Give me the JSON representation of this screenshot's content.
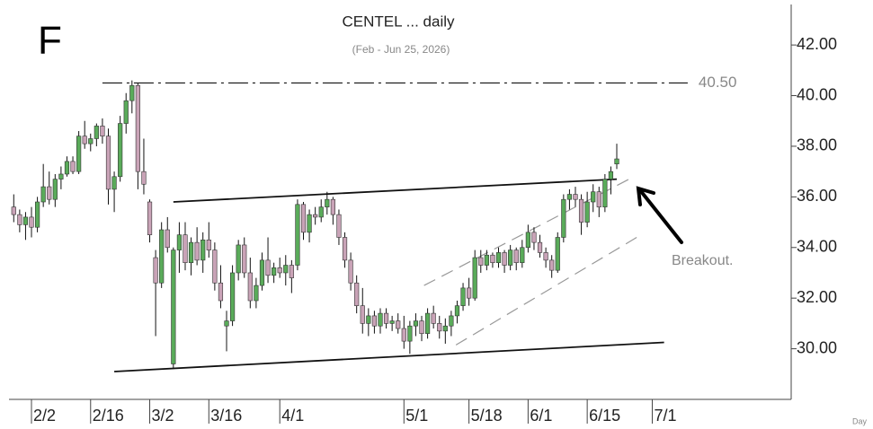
{
  "chart_data": {
    "type": "candlestick",
    "title": "CENTEL ... daily",
    "subtitle": "(Feb - Jun 25, 2026)",
    "symbol": "F",
    "x_axis_label": "Day",
    "annotation": "Breakout.",
    "up_color": "#5aab5a",
    "down_color": "#c9a3b7",
    "ylim": [
      28,
      43.6
    ],
    "yticks": [
      {
        "value": 30,
        "label": "30.00"
      },
      {
        "value": 32,
        "label": "32.00"
      },
      {
        "value": 34,
        "label": "34.00"
      },
      {
        "value": 36,
        "label": "36.00"
      },
      {
        "value": 38,
        "label": "38.00"
      },
      {
        "value": 40,
        "label": "40.00"
      },
      {
        "value": 42,
        "label": "42.00"
      }
    ],
    "categories": [
      null,
      null,
      null,
      "2/2",
      null,
      null,
      null,
      null,
      null,
      null,
      null,
      null,
      null,
      "2/16",
      null,
      null,
      null,
      null,
      null,
      null,
      null,
      null,
      null,
      "3/2",
      null,
      null,
      null,
      null,
      null,
      null,
      null,
      null,
      null,
      "3/16",
      null,
      null,
      null,
      null,
      null,
      null,
      null,
      null,
      null,
      null,
      null,
      "4/1",
      null,
      null,
      null,
      null,
      null,
      null,
      null,
      null,
      null,
      null,
      null,
      null,
      null,
      null,
      null,
      null,
      null,
      null,
      null,
      null,
      "5/1",
      null,
      null,
      null,
      null,
      null,
      null,
      null,
      null,
      null,
      null,
      "5/18",
      null,
      null,
      null,
      null,
      null,
      null,
      null,
      null,
      null,
      "6/1",
      null,
      null,
      null,
      null,
      null,
      null,
      null,
      null,
      null,
      "6/15",
      null,
      null,
      null,
      null,
      null,
      null,
      null,
      null,
      null,
      null,
      "7/1",
      null,
      null,
      null,
      null,
      null,
      null,
      null,
      null,
      null,
      null,
      null,
      null,
      null,
      null,
      null,
      null,
      null,
      null,
      null,
      null,
      null,
      null,
      null
    ],
    "open": [
      35.6,
      35.3,
      34.9,
      35.2,
      34.8,
      35.8,
      36.4,
      35.9,
      36.7,
      36.9,
      37.4,
      37.0,
      38.4,
      38.1,
      38.3,
      38.8,
      38.4,
      36.3,
      36.8,
      38.9,
      39.8,
      40.4,
      37.0,
      35.8,
      33.6,
      32.6,
      34.7,
      29.4,
      33.9,
      34.5,
      33.4,
      34.2,
      33.5,
      34.3,
      33.9,
      32.6,
      30.9,
      31.1,
      33.0,
      34.1,
      33.0,
      31.9,
      32.5,
      33.5,
      32.9,
      33.2,
      33.0,
      33.3,
      33.3,
      35.7,
      34.6,
      35.3,
      35.2,
      35.6,
      35.9,
      35.3,
      34.4,
      33.5,
      32.6,
      31.7,
      31.0,
      31.3,
      30.9,
      31.4,
      31.0,
      31.1,
      30.8,
      30.3,
      30.9,
      31.1,
      30.6,
      31.4,
      31.0,
      30.7,
      30.9,
      31.3,
      31.7,
      32.4,
      32.0,
      33.6,
      33.3,
      33.7,
      33.4,
      33.8,
      33.3,
      33.9,
      33.4,
      34.0,
      34.6,
      34.2,
      33.8,
      33.5,
      33.1,
      34.4,
      35.9,
      36.1,
      35.9,
      35.0,
      35.8,
      36.2,
      35.6,
      36.7,
      37.3,
      null,
      null,
      null,
      null,
      null,
      null,
      null,
      null,
      null,
      null,
      null,
      null,
      null,
      null,
      null,
      null,
      null,
      null,
      null,
      null,
      null,
      null,
      null,
      null,
      null,
      null,
      null,
      null,
      null
    ],
    "high": [
      36.1,
      35.5,
      35.4,
      35.6,
      36.0,
      37.3,
      37.0,
      36.9,
      37.2,
      37.6,
      37.6,
      38.6,
      39.0,
      38.5,
      38.9,
      39.1,
      38.7,
      37.0,
      39.2,
      40.1,
      40.6,
      40.5,
      38.3,
      35.9,
      33.9,
      35.0,
      35.2,
      34.0,
      35.0,
      35.0,
      34.4,
      34.8,
      34.6,
      35.0,
      34.2,
      33.3,
      31.5,
      33.3,
      34.3,
      34.4,
      33.6,
      32.8,
      33.8,
      34.4,
      33.4,
      33.6,
      33.7,
      33.5,
      35.9,
      35.8,
      35.5,
      35.6,
      35.9,
      36.2,
      36.0,
      35.5,
      34.6,
      33.8,
      32.9,
      32.4,
      31.6,
      31.5,
      31.6,
      31.6,
      31.3,
      31.4,
      31.3,
      31.1,
      31.4,
      31.3,
      31.6,
      31.7,
      31.3,
      31.2,
      31.5,
      31.9,
      32.6,
      32.8,
      33.9,
      33.9,
      33.9,
      33.8,
      34.0,
      33.9,
      34.1,
      34.0,
      34.3,
      34.9,
      34.8,
      34.5,
      34.0,
      33.7,
      34.6,
      36.1,
      36.3,
      36.4,
      36.1,
      36.2,
      36.5,
      36.4,
      36.9,
      37.2,
      38.1,
      null,
      null,
      null,
      null,
      null,
      null,
      null,
      null,
      null,
      null,
      null,
      null,
      null,
      null,
      null,
      null,
      null,
      null,
      null,
      null,
      null,
      null,
      null,
      null,
      null,
      null,
      null,
      null,
      null
    ],
    "low": [
      35.0,
      34.6,
      34.3,
      34.4,
      34.6,
      35.6,
      35.7,
      35.6,
      36.3,
      36.8,
      36.9,
      36.9,
      37.9,
      37.8,
      38.0,
      38.1,
      35.7,
      35.4,
      36.6,
      38.5,
      39.3,
      36.3,
      36.1,
      34.2,
      30.5,
      32.4,
      33.8,
      29.2,
      33.0,
      33.1,
      32.9,
      33.3,
      33.0,
      33.6,
      32.3,
      31.6,
      29.9,
      30.9,
      32.7,
      32.8,
      31.6,
      31.6,
      32.3,
      32.6,
      32.6,
      32.8,
      32.5,
      32.2,
      33.1,
      34.3,
      34.2,
      34.9,
      35.0,
      35.3,
      34.9,
      34.1,
      33.2,
      32.3,
      31.4,
      30.6,
      30.5,
      30.6,
      30.6,
      30.8,
      30.7,
      30.6,
      30.0,
      29.8,
      30.5,
      30.3,
      30.4,
      30.8,
      30.4,
      30.2,
      30.5,
      31.0,
      31.5,
      31.7,
      31.9,
      33.0,
      33.1,
      33.2,
      33.2,
      33.0,
      33.1,
      33.1,
      33.2,
      33.8,
      33.9,
      33.6,
      33.2,
      32.8,
      33.0,
      34.2,
      35.5,
      35.6,
      34.5,
      34.8,
      35.4,
      35.2,
      35.4,
      36.1,
      37.1,
      null,
      null,
      null,
      null,
      null,
      null,
      null,
      null,
      null,
      null,
      null,
      null,
      null,
      null,
      null,
      null,
      null,
      null,
      null,
      null,
      null,
      null,
      null,
      null,
      null,
      null,
      null,
      null,
      null
    ],
    "close": [
      35.3,
      34.9,
      35.2,
      34.8,
      35.8,
      36.4,
      35.9,
      36.7,
      36.9,
      37.4,
      37.0,
      38.4,
      38.1,
      38.3,
      38.8,
      38.4,
      36.3,
      36.8,
      38.9,
      39.8,
      40.4,
      37.0,
      36.5,
      34.5,
      32.6,
      34.7,
      34.0,
      33.9,
      34.5,
      33.4,
      34.2,
      33.5,
      34.3,
      33.9,
      32.6,
      31.9,
      31.1,
      33.0,
      34.1,
      33.0,
      31.9,
      32.5,
      33.5,
      32.9,
      33.2,
      33.0,
      33.3,
      32.8,
      35.7,
      34.6,
      35.3,
      35.2,
      35.6,
      35.9,
      35.3,
      34.4,
      33.5,
      32.6,
      31.7,
      31.0,
      31.3,
      30.9,
      31.4,
      31.0,
      31.1,
      30.8,
      30.3,
      30.9,
      31.1,
      30.6,
      31.4,
      31.0,
      30.7,
      30.9,
      31.3,
      31.7,
      32.4,
      32.0,
      33.6,
      33.3,
      33.7,
      33.4,
      33.8,
      33.3,
      33.9,
      33.4,
      34.0,
      34.6,
      34.2,
      33.8,
      33.5,
      33.1,
      34.4,
      35.9,
      36.1,
      35.9,
      35.0,
      35.8,
      36.2,
      35.6,
      36.7,
      37.0,
      37.5,
      null,
      null,
      null,
      null,
      null,
      null,
      null,
      null,
      null,
      null,
      null,
      null,
      null,
      null,
      null,
      null,
      null,
      null,
      null,
      null,
      null,
      null,
      null,
      null,
      null,
      null,
      null,
      null,
      null
    ],
    "lines": [
      {
        "x": [
          15,
          114
        ],
        "y": [
          40.5,
          40.5
        ],
        "style": "dashdot",
        "label": "40.50"
      },
      {
        "x": [
          27,
          102
        ],
        "y": [
          35.8,
          36.7
        ],
        "style": "solid"
      },
      {
        "x": [
          17,
          110
        ],
        "y": [
          29.1,
          30.25
        ],
        "style": "solid"
      },
      {
        "x": [
          69.4,
          104.5
        ],
        "y": [
          32.5,
          36.75
        ],
        "style": "dashed"
      },
      {
        "x": [
          74.8,
          106.1
        ],
        "y": [
          30.15,
          34.5
        ],
        "style": "dashed"
      }
    ]
  }
}
